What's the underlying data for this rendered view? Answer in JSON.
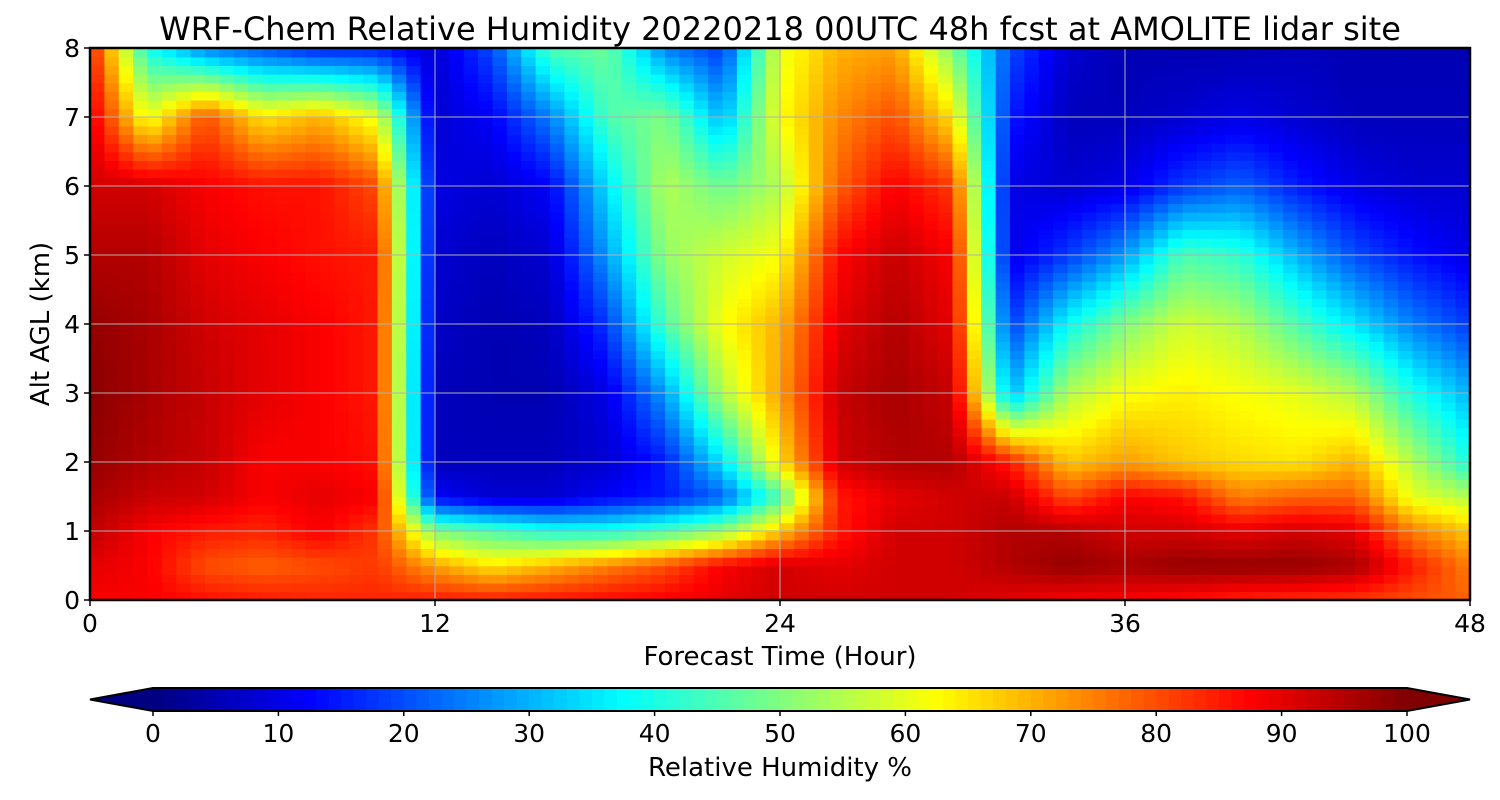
{
  "chart_data": {
    "type": "heatmap",
    "title": "WRF-Chem Relative Humidity 20220218 00UTC 48h fcst at AMOLITE lidar site",
    "xlabel": "Forecast Time (Hour)",
    "ylabel": "Alt AGL (km)",
    "xlim": [
      0,
      48
    ],
    "ylim": [
      0,
      8
    ],
    "x_ticks": [
      0,
      12,
      24,
      36,
      48
    ],
    "y_ticks": [
      0,
      1,
      2,
      3,
      4,
      5,
      6,
      7,
      8
    ],
    "grid": true,
    "colormap": "jet",
    "colorbar": {
      "label": "Relative Humidity %",
      "range": [
        0,
        100
      ],
      "ticks": [
        0,
        10,
        20,
        30,
        40,
        50,
        60,
        70,
        80,
        90,
        100
      ],
      "extend": "both",
      "orientation": "horizontal"
    },
    "x": [
      0,
      2,
      4,
      6,
      8,
      10,
      12,
      14,
      16,
      18,
      20,
      22,
      24,
      26,
      28,
      30,
      32,
      34,
      36,
      38,
      40,
      42,
      44,
      46,
      48
    ],
    "y": [
      0,
      0.5,
      1,
      1.5,
      2,
      3,
      4,
      5,
      6,
      7,
      8
    ],
    "values": [
      [
        88,
        88,
        86,
        85,
        84,
        84,
        85,
        85,
        86,
        87,
        88,
        90,
        92,
        92,
        92,
        92,
        90,
        88,
        88,
        86,
        84,
        83,
        82,
        80,
        78
      ],
      [
        90,
        88,
        80,
        78,
        80,
        82,
        72,
        65,
        70,
        75,
        80,
        88,
        92,
        90,
        92,
        92,
        95,
        98,
        96,
        98,
        98,
        98,
        96,
        85,
        75
      ],
      [
        94,
        88,
        85,
        84,
        88,
        82,
        50,
        45,
        40,
        40,
        45,
        52,
        68,
        85,
        92,
        92,
        95,
        95,
        92,
        92,
        90,
        92,
        90,
        75,
        68
      ],
      [
        96,
        93,
        92,
        88,
        90,
        88,
        12,
        8,
        8,
        12,
        15,
        22,
        45,
        85,
        90,
        92,
        93,
        80,
        88,
        86,
        75,
        78,
        78,
        60,
        55
      ],
      [
        98,
        95,
        93,
        88,
        88,
        86,
        6,
        6,
        6,
        8,
        15,
        35,
        65,
        92,
        95,
        95,
        85,
        68,
        72,
        68,
        66,
        65,
        70,
        55,
        40
      ],
      [
        99,
        96,
        93,
        90,
        88,
        85,
        6,
        5,
        5,
        10,
        28,
        55,
        72,
        93,
        96,
        93,
        30,
        55,
        62,
        64,
        62,
        60,
        55,
        40,
        30
      ],
      [
        98,
        96,
        92,
        90,
        88,
        85,
        7,
        5,
        6,
        18,
        45,
        62,
        70,
        90,
        95,
        90,
        18,
        38,
        50,
        58,
        55,
        45,
        35,
        25,
        18
      ],
      [
        95,
        95,
        90,
        88,
        86,
        85,
        8,
        6,
        8,
        28,
        52,
        58,
        62,
        87,
        93,
        88,
        10,
        18,
        28,
        45,
        42,
        30,
        20,
        14,
        10
      ],
      [
        92,
        92,
        88,
        86,
        86,
        80,
        10,
        8,
        12,
        35,
        55,
        48,
        55,
        78,
        88,
        82,
        10,
        8,
        10,
        18,
        22,
        15,
        10,
        8,
        8
      ],
      [
        90,
        60,
        80,
        65,
        70,
        60,
        8,
        12,
        25,
        45,
        50,
        30,
        62,
        74,
        80,
        65,
        15,
        6,
        6,
        8,
        10,
        8,
        6,
        6,
        6
      ],
      [
        85,
        40,
        25,
        20,
        15,
        15,
        8,
        20,
        45,
        48,
        25,
        18,
        60,
        70,
        72,
        50,
        20,
        8,
        5,
        5,
        5,
        6,
        5,
        5,
        5
      ]
    ]
  }
}
